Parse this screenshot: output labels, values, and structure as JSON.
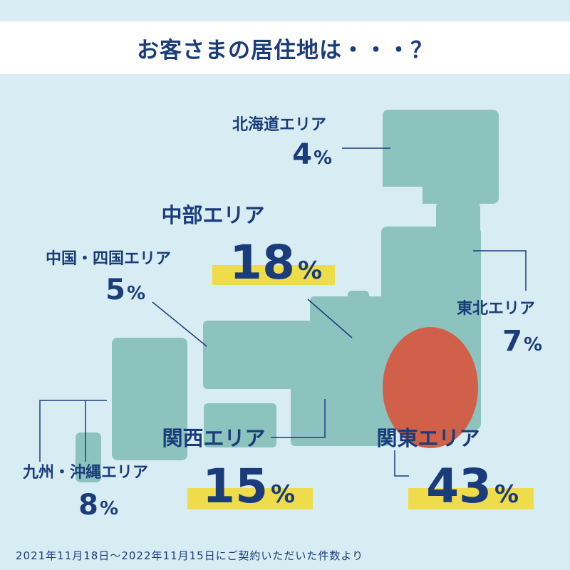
{
  "title": "お客さまの居住地は・・・？",
  "footer": "2021年11月18日～2022年11月15日にご契約いただいた件数より",
  "colors": {
    "background": "#d8ecf4",
    "land": "#8dc3bf",
    "highlight": "#d0604a",
    "label": "#1a3c7a",
    "underline": "#eedc4a"
  },
  "chart_data": {
    "type": "map",
    "unit": "%",
    "regions": [
      {
        "id": "hokkaido",
        "name": "北海道エリア",
        "value": 4,
        "pct_label": "%"
      },
      {
        "id": "tohoku",
        "name": "東北エリア",
        "value": 7,
        "pct_label": "%"
      },
      {
        "id": "kanto",
        "name": "関東エリア",
        "value": 43,
        "pct_label": "%",
        "highlight": true
      },
      {
        "id": "chubu",
        "name": "中部エリア",
        "value": 18,
        "pct_label": "%"
      },
      {
        "id": "kansai",
        "name": "関西エリア",
        "value": 15,
        "pct_label": "%"
      },
      {
        "id": "chugoku",
        "name": "中国・四国エリア",
        "value": 5,
        "pct_label": "%"
      },
      {
        "id": "kyushu",
        "name": "九州・沖縄エリア",
        "value": 8,
        "pct_label": "%"
      }
    ]
  }
}
